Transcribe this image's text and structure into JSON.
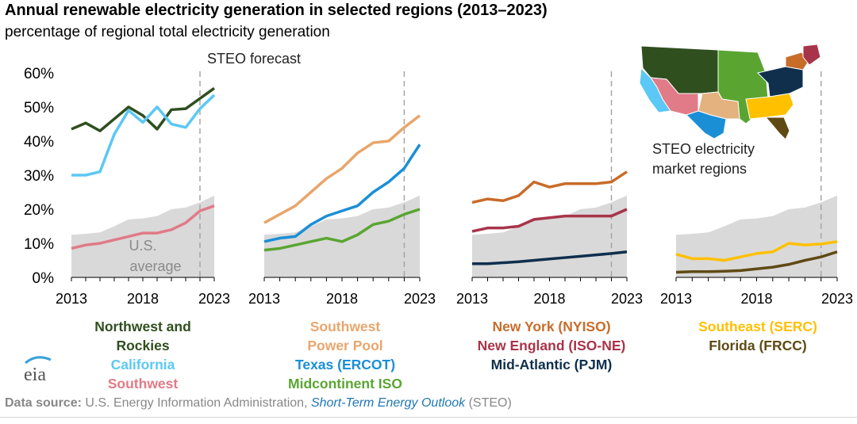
{
  "title": "Annual renewable electricity generation in selected regions (2013–2023)",
  "subtitle": "percentage of regional total electricity generation",
  "forecast_label": "STEO forecast",
  "us_average_label": [
    "U.S.",
    "average"
  ],
  "map_label": [
    "STEO electricity",
    "market regions"
  ],
  "source": {
    "prefix": "Data source:",
    "agency": "U.S. Energy Information Administration,",
    "report": "Short-Term Energy Outlook",
    "suffix": "(STEO)"
  },
  "logo_text": "eia",
  "colors": {
    "us_average_fill": "#d9d9d9",
    "forecast_line": "#a6a6a6",
    "northwest_rockies": "#2f4f1f",
    "california": "#5bc8f5",
    "southwest": "#e07b87",
    "spp": "#e8a66c",
    "ercot": "#1a8fd6",
    "miso": "#5aa532",
    "nyiso": "#c86c2a",
    "isone": "#a8344a",
    "pjm": "#0f2f4d",
    "serc": "#ffc000",
    "frcc": "#5f4a14"
  },
  "chart_data": [
    {
      "type": "line",
      "panel": 1,
      "x": [
        2013,
        2014,
        2015,
        2016,
        2017,
        2018,
        2019,
        2020,
        2021,
        2022,
        2023
      ],
      "xticks": [
        "2013",
        "2018",
        "2023"
      ],
      "yticks": [
        "0%",
        "10%",
        "20%",
        "30%",
        "40%",
        "50%",
        "60%"
      ],
      "ylim": [
        0,
        60
      ],
      "forecast_start": 2022,
      "us_average": [
        12.5,
        12.8,
        13.2,
        15.0,
        17.0,
        17.3,
        18.0,
        20.0,
        20.5,
        22.0,
        24.0
      ],
      "series": [
        {
          "name": "Northwest and Rockies",
          "values": [
            43.5,
            45.3,
            43.0,
            46.5,
            50.0,
            47.5,
            43.5,
            49.2,
            49.5,
            52.5,
            55.5
          ]
        },
        {
          "name": "California",
          "values": [
            30.0,
            30.0,
            31.0,
            42.0,
            49.0,
            45.5,
            50.0,
            45.0,
            44.0,
            49.5,
            53.5
          ]
        },
        {
          "name": "Southwest",
          "values": [
            8.5,
            9.5,
            10.0,
            11.0,
            12.0,
            13.0,
            13.0,
            14.0,
            16.0,
            19.5,
            21.0
          ]
        }
      ]
    },
    {
      "type": "line",
      "panel": 2,
      "x": [
        2013,
        2014,
        2015,
        2016,
        2017,
        2018,
        2019,
        2020,
        2021,
        2022,
        2023
      ],
      "xticks": [
        "2013",
        "2018",
        "2023"
      ],
      "ylim": [
        0,
        60
      ],
      "forecast_start": 2022,
      "us_average": [
        12.5,
        12.8,
        13.2,
        15.0,
        17.0,
        17.3,
        18.0,
        20.0,
        20.5,
        22.0,
        24.0
      ],
      "series": [
        {
          "name": "Southwest Power Pool",
          "values": [
            16.0,
            18.5,
            21.0,
            25.0,
            29.0,
            32.0,
            36.5,
            39.5,
            40.0,
            44.0,
            47.5
          ]
        },
        {
          "name": "Texas (ERCOT)",
          "values": [
            10.5,
            11.5,
            12.0,
            15.5,
            18.0,
            19.5,
            21.0,
            25.0,
            28.0,
            32.0,
            39.0
          ]
        },
        {
          "name": "Midcontinent ISO",
          "values": [
            8.0,
            8.5,
            9.5,
            10.5,
            11.5,
            10.5,
            12.5,
            15.5,
            16.5,
            18.5,
            20.0
          ]
        }
      ]
    },
    {
      "type": "line",
      "panel": 3,
      "x": [
        2013,
        2014,
        2015,
        2016,
        2017,
        2018,
        2019,
        2020,
        2021,
        2022,
        2023
      ],
      "xticks": [
        "2013",
        "2018",
        "2023"
      ],
      "ylim": [
        0,
        60
      ],
      "forecast_start": 2022,
      "us_average": [
        12.5,
        12.8,
        13.2,
        15.0,
        17.0,
        17.3,
        18.0,
        20.0,
        20.5,
        22.0,
        24.0
      ],
      "series": [
        {
          "name": "New York (NYISO)",
          "values": [
            22.0,
            23.0,
            22.5,
            24.0,
            28.0,
            26.5,
            27.5,
            27.5,
            27.5,
            28.0,
            31.0
          ]
        },
        {
          "name": "New England (ISO-NE)",
          "values": [
            13.5,
            14.5,
            14.5,
            15.0,
            17.0,
            17.5,
            18.0,
            18.0,
            18.0,
            18.0,
            20.0
          ]
        },
        {
          "name": "Mid-Atlantic (PJM)",
          "values": [
            4.0,
            4.0,
            4.3,
            4.6,
            5.0,
            5.4,
            5.8,
            6.2,
            6.6,
            7.0,
            7.5
          ]
        }
      ]
    },
    {
      "type": "line",
      "panel": 4,
      "x": [
        2013,
        2014,
        2015,
        2016,
        2017,
        2018,
        2019,
        2020,
        2021,
        2022,
        2023
      ],
      "xticks": [
        "2013",
        "2018",
        "2023"
      ],
      "ylim": [
        0,
        60
      ],
      "forecast_start": 2022,
      "us_average": [
        12.5,
        12.8,
        13.2,
        15.0,
        17.0,
        17.3,
        18.0,
        20.0,
        20.5,
        22.0,
        24.0
      ],
      "series": [
        {
          "name": "Southeast (SERC)",
          "values": [
            6.8,
            5.5,
            5.5,
            5.0,
            6.0,
            7.0,
            7.5,
            10.0,
            9.5,
            9.8,
            10.5
          ]
        },
        {
          "name": "Florida (FRCC)",
          "values": [
            1.5,
            1.7,
            1.7,
            1.8,
            2.0,
            2.5,
            3.0,
            3.8,
            5.0,
            6.0,
            7.5
          ]
        }
      ]
    }
  ],
  "legends": [
    [
      {
        "text": "Northwest and",
        "color": "#2f4f1f"
      },
      {
        "text": "Rockies",
        "color": "#2f4f1f"
      },
      {
        "text": "California",
        "color": "#5bc8f5"
      },
      {
        "text": "Southwest",
        "color": "#e07b87"
      }
    ],
    [
      {
        "text": "Southwest",
        "color": "#e8a66c"
      },
      {
        "text": "Power Pool",
        "color": "#e8a66c"
      },
      {
        "text": "Texas (ERCOT)",
        "color": "#1a8fd6"
      },
      {
        "text": "Midcontinent ISO",
        "color": "#5aa532"
      }
    ],
    [
      {
        "text": "New York (NYISO)",
        "color": "#c86c2a"
      },
      {
        "text": "New England (ISO-NE)",
        "color": "#a8344a"
      },
      {
        "text": "Mid-Atlantic (PJM)",
        "color": "#0f2f4d"
      }
    ],
    [
      {
        "text": "Southeast (SERC)",
        "color": "#ffc000"
      },
      {
        "text": "Florida (FRCC)",
        "color": "#5f4a14"
      }
    ]
  ]
}
